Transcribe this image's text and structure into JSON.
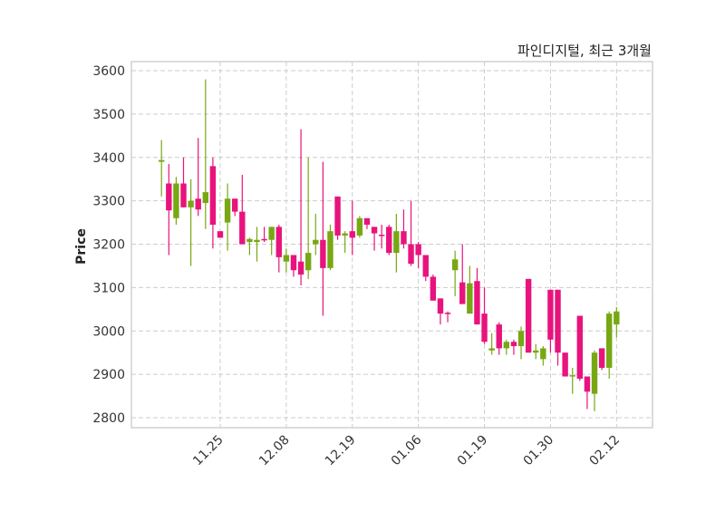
{
  "chart_data": {
    "type": "candlestick",
    "title": "파인디지털, 최근 3개월",
    "xlabel": "",
    "ylabel": "Price",
    "ylim": [
      2777,
      3621
    ],
    "xlim": [
      -4.1,
      66.9
    ],
    "grid": true,
    "colors": {
      "up": "#77a814",
      "down": "#e8137d",
      "grid": "#cccccc",
      "frame": "#d0d0d0"
    },
    "yticks": [
      2800,
      2900,
      3000,
      3100,
      3200,
      3300,
      3400,
      3500,
      3600
    ],
    "xticks": [
      {
        "index": 8,
        "label": "11.25"
      },
      {
        "index": 17,
        "label": "12.08"
      },
      {
        "index": 26,
        "label": "12.19"
      },
      {
        "index": 35,
        "label": "01.06"
      },
      {
        "index": 44,
        "label": "01.19"
      },
      {
        "index": 53,
        "label": "01.30"
      },
      {
        "index": 62,
        "label": "02.12"
      }
    ],
    "ohlc": [
      [
        3390,
        3440,
        3310,
        3394
      ],
      [
        3340,
        3385,
        3175,
        3278
      ],
      [
        3260,
        3355,
        3245,
        3340
      ],
      [
        3340,
        3400,
        3285,
        3285
      ],
      [
        3285,
        3350,
        3150,
        3300
      ],
      [
        3305,
        3445,
        3265,
        3280
      ],
      [
        3295,
        3580,
        3235,
        3320
      ],
      [
        3380,
        3400,
        3190,
        3245
      ],
      [
        3230,
        3230,
        3215,
        3215
      ],
      [
        3250,
        3340,
        3185,
        3305
      ],
      [
        3305,
        3305,
        3265,
        3275
      ],
      [
        3275,
        3360,
        3200,
        3200
      ],
      [
        3205,
        3215,
        3175,
        3212
      ],
      [
        3205,
        3240,
        3160,
        3210
      ],
      [
        3212,
        3240,
        3205,
        3210
      ],
      [
        3210,
        3240,
        3175,
        3240
      ],
      [
        3240,
        3245,
        3135,
        3170
      ],
      [
        3160,
        3190,
        3135,
        3175
      ],
      [
        3175,
        3175,
        3125,
        3140
      ],
      [
        3160,
        3465,
        3105,
        3130
      ],
      [
        3140,
        3400,
        3120,
        3180
      ],
      [
        3200,
        3270,
        3175,
        3210
      ],
      [
        3210,
        3390,
        3035,
        3145
      ],
      [
        3145,
        3245,
        3140,
        3230
      ],
      [
        3310,
        3310,
        3210,
        3220
      ],
      [
        3220,
        3230,
        3180,
        3225
      ],
      [
        3230,
        3300,
        3175,
        3215
      ],
      [
        3220,
        3265,
        3215,
        3260
      ],
      [
        3260,
        3260,
        3235,
        3245
      ],
      [
        3240,
        3240,
        3185,
        3225
      ],
      [
        3222,
        3245,
        3190,
        3220
      ],
      [
        3240,
        3245,
        3175,
        3180
      ],
      [
        3180,
        3270,
        3135,
        3230
      ],
      [
        3230,
        3280,
        3190,
        3200
      ],
      [
        3200,
        3300,
        3150,
        3155
      ],
      [
        3200,
        3205,
        3145,
        3175
      ],
      [
        3175,
        3175,
        3115,
        3125
      ],
      [
        3125,
        3130,
        3070,
        3070
      ],
      [
        3075,
        3075,
        3015,
        3040
      ],
      [
        3042,
        3045,
        3020,
        3040
      ],
      [
        3140,
        3185,
        3080,
        3165
      ],
      [
        3112,
        3200,
        3062,
        3062
      ],
      [
        3040,
        3150,
        3040,
        3110
      ],
      [
        3115,
        3145,
        3015,
        3015
      ],
      [
        3040,
        3100,
        2970,
        2975
      ],
      [
        2955,
        2995,
        2945,
        2960
      ],
      [
        3015,
        3020,
        2945,
        2960
      ],
      [
        2960,
        2980,
        2945,
        2975
      ],
      [
        2975,
        2980,
        2945,
        2965
      ],
      [
        2965,
        3010,
        2935,
        3000
      ],
      [
        3120,
        3120,
        2950,
        2950
      ],
      [
        2950,
        2970,
        2935,
        2955
      ],
      [
        2935,
        2965,
        2920,
        2960
      ],
      [
        3095,
        3095,
        2950,
        2980
      ],
      [
        3095,
        3095,
        2920,
        2950
      ],
      [
        2950,
        2950,
        2895,
        2895
      ],
      [
        2895,
        2915,
        2855,
        2898
      ],
      [
        3035,
        3035,
        2885,
        2890
      ],
      [
        2895,
        2895,
        2820,
        2860
      ],
      [
        2855,
        2955,
        2815,
        2950
      ],
      [
        2960,
        2960,
        2910,
        2915
      ],
      [
        2915,
        3045,
        2890,
        3040
      ],
      [
        3015,
        3055,
        2985,
        3045
      ]
    ]
  }
}
